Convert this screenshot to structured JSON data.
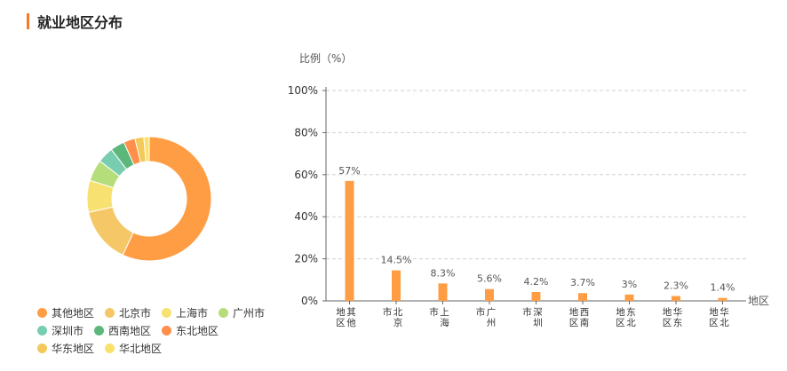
{
  "header": {
    "title": "就业地区分布"
  },
  "colors": {
    "accent": "#f5772a",
    "bar": "#ff9d45"
  },
  "chart_data": [
    {
      "type": "pie",
      "variant": "donut",
      "labels": [
        "其他地区",
        "北京市",
        "上海市",
        "广州市",
        "深圳市",
        "西南地区",
        "东北地区",
        "华东地区",
        "华北地区"
      ],
      "values": [
        57,
        14.5,
        8.3,
        5.6,
        4.2,
        3.7,
        3,
        2.3,
        1.4
      ],
      "colors": [
        "#ff9d45",
        "#f5c767",
        "#f7e170",
        "#b5dd7a",
        "#78cdb0",
        "#5cb87a",
        "#ff8f4a",
        "#f3c95a",
        "#fbe16b"
      ],
      "legend": "bottom-left"
    },
    {
      "type": "bar",
      "ylabel": "比例（%）",
      "xlabel": "地区",
      "categories": [
        "其他\n地区",
        "北京\n市",
        "上海\n市",
        "广州\n市",
        "深圳\n市",
        "西南\n地区",
        "东北\n地区",
        "华东\n地区",
        "华北\n地区"
      ],
      "values": [
        57,
        14.5,
        8.3,
        5.6,
        4.2,
        3.7,
        3,
        2.3,
        1.4
      ],
      "data_labels": [
        "57%",
        "14.5%",
        "8.3%",
        "5.6%",
        "4.2%",
        "3.7%",
        "3%",
        "2.3%",
        "1.4%"
      ],
      "ylim": [
        0,
        100
      ],
      "yticks": [
        "0%",
        "20%",
        "40%",
        "60%",
        "80%",
        "100%"
      ],
      "grid": true
    }
  ]
}
